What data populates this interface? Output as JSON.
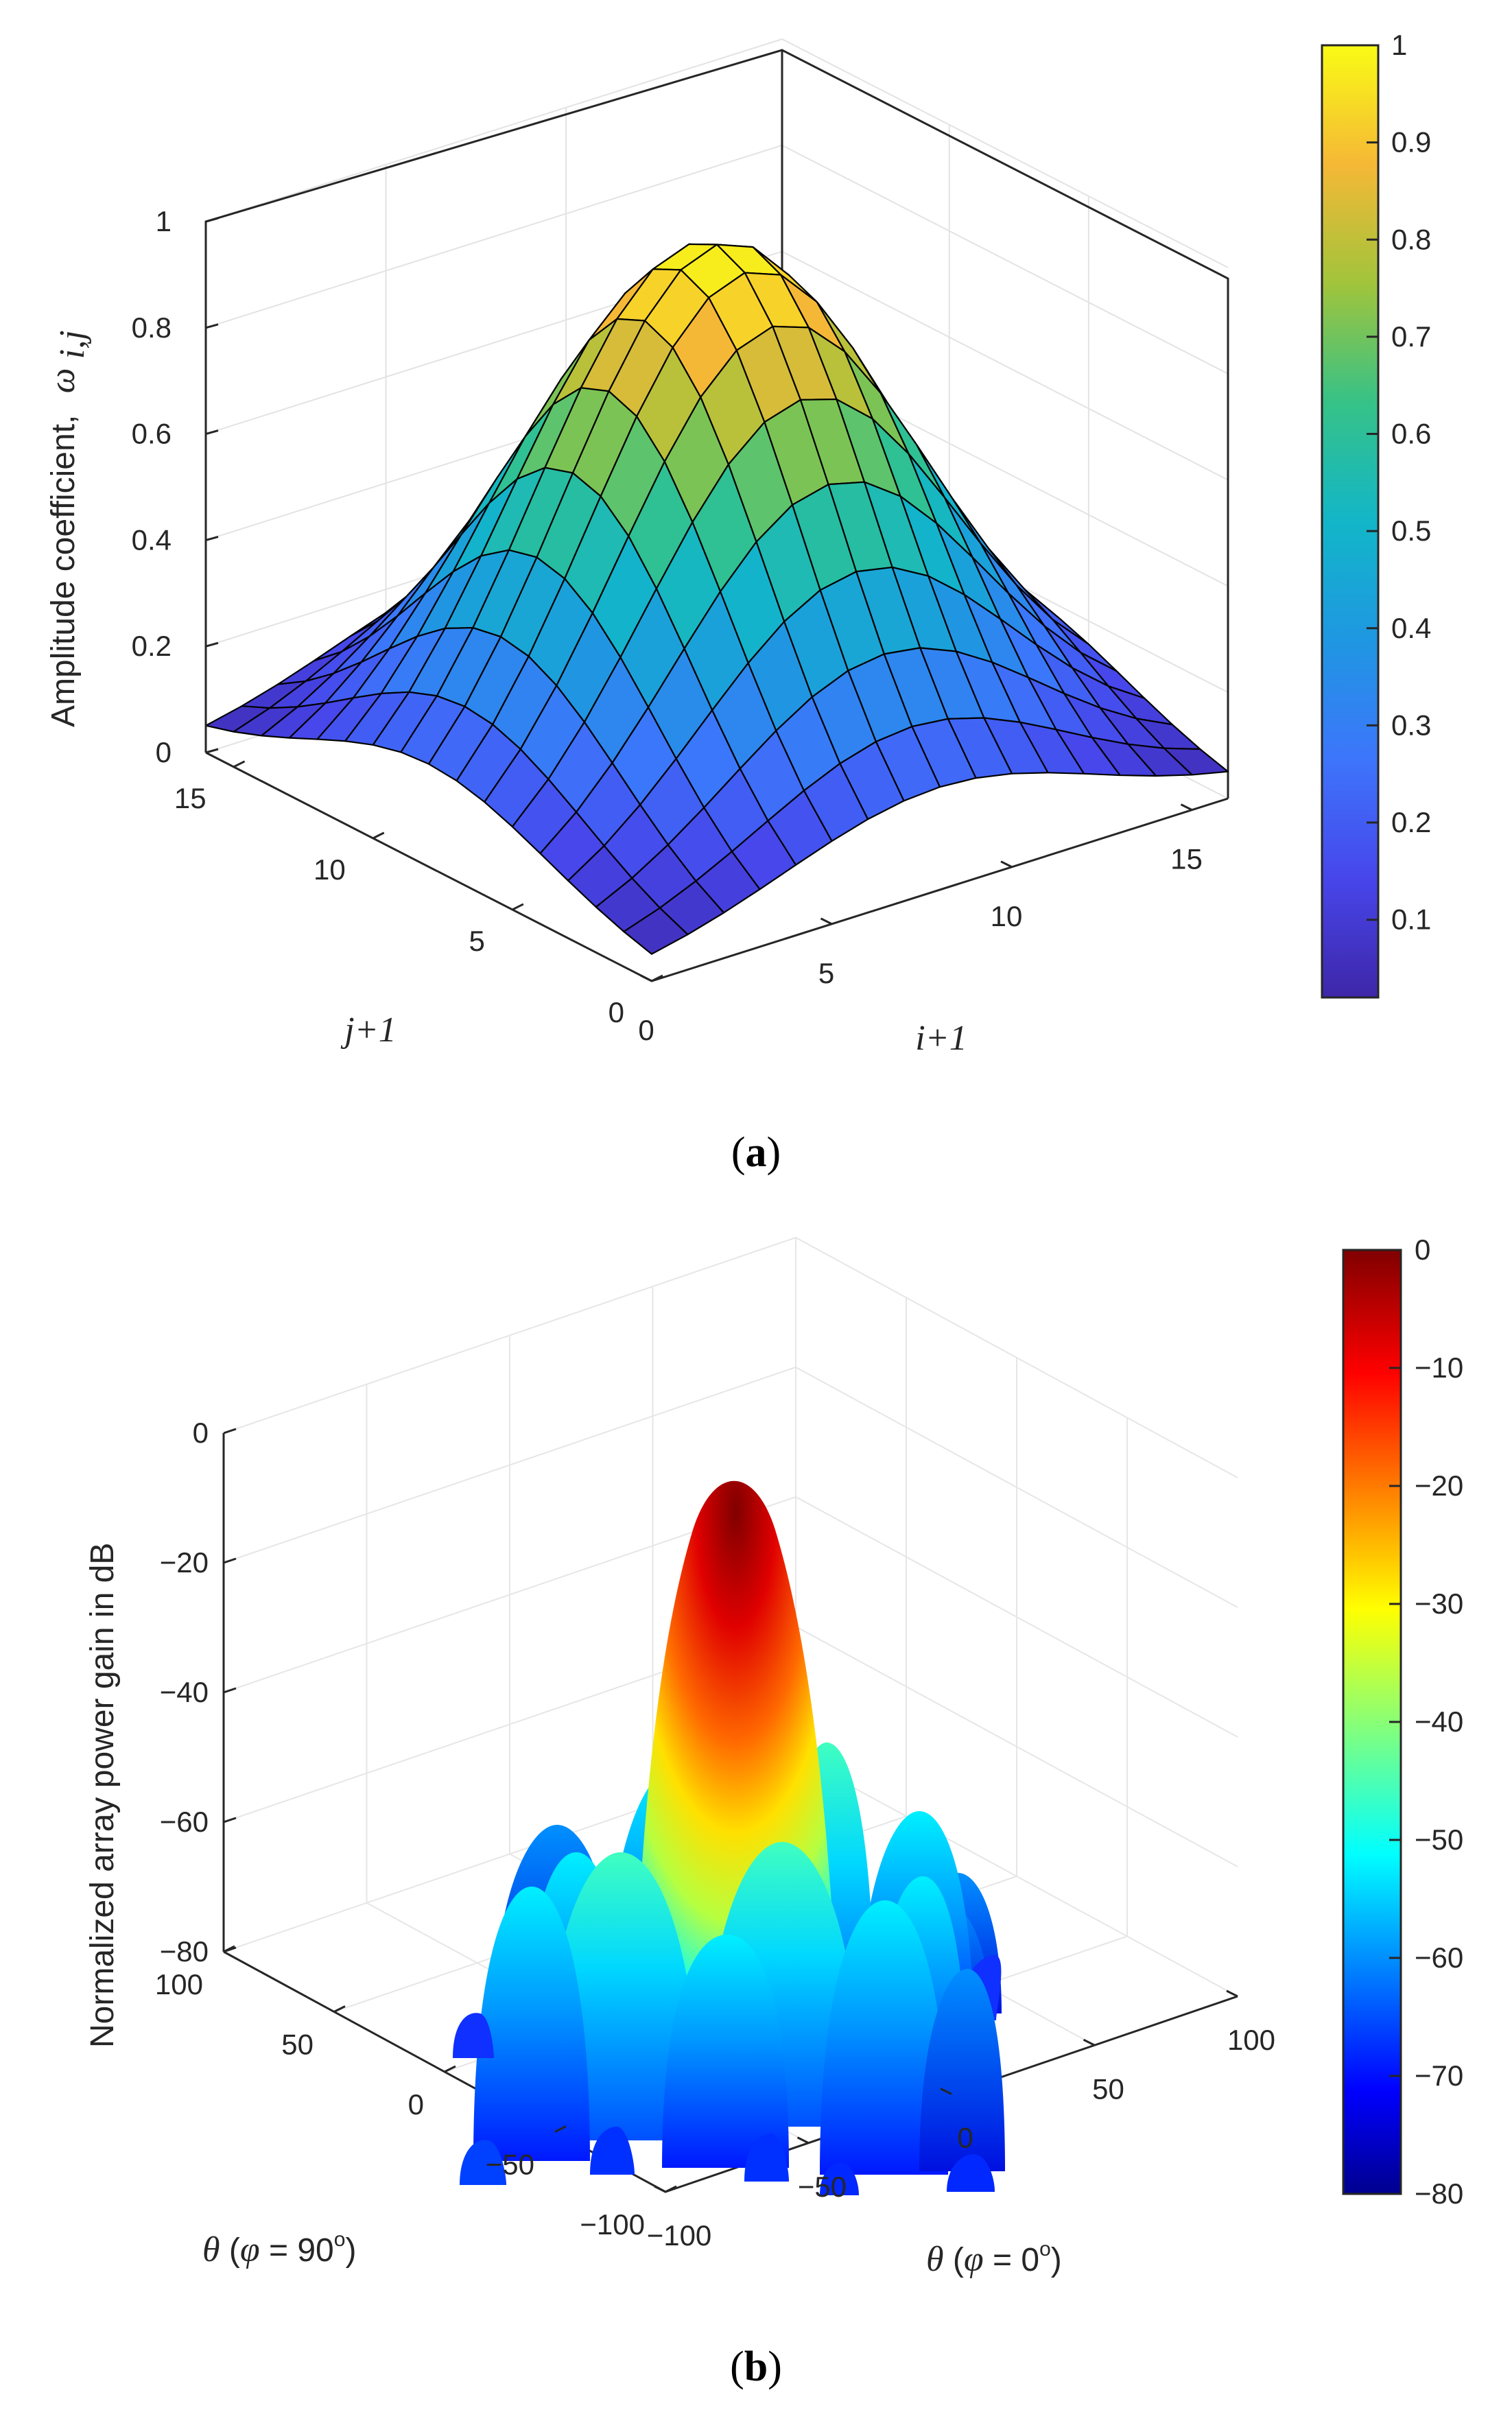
{
  "chart_data": [
    {
      "id": "a",
      "type": "surface3d",
      "caption_letter": "a",
      "zlabel": "Amplitude coefficient,",
      "zlabel_symbol": "ω",
      "zlabel_subscript": "i,j",
      "xlabel": "i+1",
      "ylabel": "j+1",
      "z_ticks": [
        "0",
        "0.2",
        "0.4",
        "0.6",
        "0.8",
        "1"
      ],
      "x_ticks": [
        "0",
        "5",
        "10",
        "15"
      ],
      "y_ticks": [
        "0",
        "5",
        "10",
        "15"
      ],
      "xlim": [
        0,
        16
      ],
      "ylim": [
        0,
        16
      ],
      "zlim": [
        0,
        1
      ],
      "grid_n": 16,
      "peak_value": 1.0,
      "edge_value": 0.02,
      "colormap": "parula",
      "colorbar_ticks": [
        "1",
        "0.9",
        "0.8",
        "0.7",
        "0.6",
        "0.5",
        "0.4",
        "0.3",
        "0.2",
        "0.1"
      ],
      "colorbar_range": [
        0.02,
        1
      ]
    },
    {
      "id": "b",
      "type": "surface3d",
      "caption_letter": "b",
      "zlabel": "Normalized array power gain in dB",
      "xlabel_theta": "θ",
      "xlabel_phi": "φ",
      "xlabel_value": "0",
      "ylabel_value": "90",
      "z_ticks": [
        "0",
        "−20",
        "−40",
        "−60",
        "−80"
      ],
      "x_ticks": [
        "−100",
        "−50",
        "0",
        "50",
        "100"
      ],
      "y_ticks": [
        "100",
        "50",
        "0",
        "−50",
        "−100"
      ],
      "xlim": [
        -100,
        100
      ],
      "ylim": [
        -100,
        100
      ],
      "zlim": [
        -80,
        0
      ],
      "main_lobe_peak_db": -3,
      "colormap": "jet",
      "colorbar_ticks": [
        "0",
        "−10",
        "−20",
        "−30",
        "−40",
        "−50",
        "−60",
        "−70",
        "−80"
      ],
      "colorbar_range": [
        -80,
        0
      ]
    }
  ],
  "colors": {
    "axis": "#262626",
    "grid": "#e6e6e6",
    "mesh": "#000000"
  }
}
